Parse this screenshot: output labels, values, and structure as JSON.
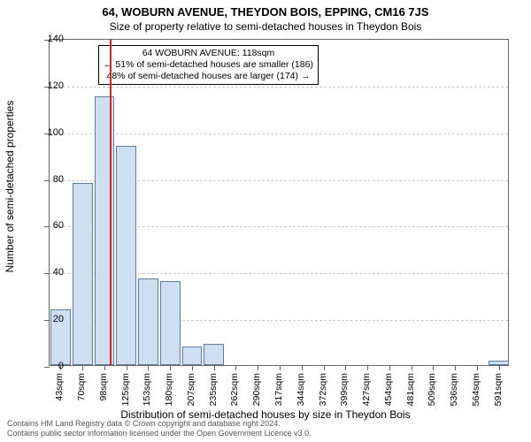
{
  "title_main": "64, WOBURN AVENUE, THEYDON BOIS, EPPING, CM16 7JS",
  "title_sub": "Size of property relative to semi-detached houses in Theydon Bois",
  "chart": {
    "type": "histogram",
    "ylim": [
      0,
      140
    ],
    "ytick_step": 20,
    "yticks": [
      0,
      20,
      40,
      60,
      80,
      100,
      120,
      140
    ],
    "ylabel": "Number of semi-detached properties",
    "xlabel": "Distribution of semi-detached houses by size in Theydon Bois",
    "x_categories": [
      "43sqm",
      "70sqm",
      "98sqm",
      "125sqm",
      "153sqm",
      "180sqm",
      "207sqm",
      "235sqm",
      "262sqm",
      "290sqm",
      "317sqm",
      "344sqm",
      "372sqm",
      "399sqm",
      "427sqm",
      "454sqm",
      "481sqm",
      "509sqm",
      "536sqm",
      "564sqm",
      "591sqm"
    ],
    "values": [
      24,
      78,
      115,
      94,
      37,
      36,
      8,
      9,
      0,
      0,
      0,
      0,
      0,
      0,
      0,
      0,
      0,
      0,
      0,
      0,
      2
    ],
    "bar_fill": "#cfdff2",
    "bar_border": "#5b7da6",
    "grid_color": "#cccccc",
    "marker_position_index": 2.75,
    "marker_color": "#d62728",
    "annotation": {
      "line1": "64 WOBURN AVENUE: 118sqm",
      "line2": "← 51% of semi-detached houses are smaller (186)",
      "line3": "48% of semi-detached houses are larger (174) →"
    }
  },
  "footer": {
    "line1": "Contains HM Land Registry data © Crown copyright and database right 2024.",
    "line2": "Contains public sector information licensed under the Open Government Licence v3.0."
  }
}
